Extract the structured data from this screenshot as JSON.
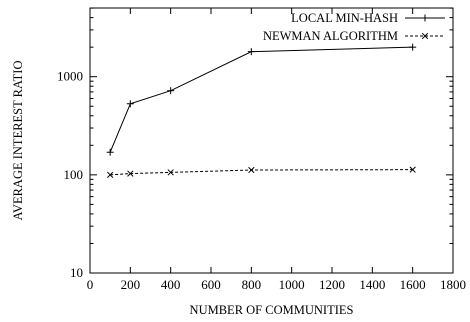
{
  "chart_data": {
    "type": "line",
    "xlabel": "NUMBER OF COMMUNITIES",
    "ylabel": "AVERAGE INTEREST RATIO",
    "xlim": [
      0,
      1800
    ],
    "ylim": [
      10,
      5000
    ],
    "yscale": "log",
    "x_ticks": [
      0,
      200,
      400,
      600,
      800,
      1000,
      1200,
      1400,
      1600,
      1800
    ],
    "y_ticks": [
      10,
      100,
      1000
    ],
    "x_tick_labels": [
      "0",
      "200",
      "400",
      "600",
      "800",
      "1000",
      "1200",
      "1400",
      "1600",
      "1800"
    ],
    "y_tick_labels": [
      "10",
      "100",
      "1000"
    ],
    "legend_position": "top-right",
    "grid": false,
    "series": [
      {
        "name": "LOCAL MIN-HASH",
        "marker": "plus",
        "line": "solid",
        "x": [
          100,
          200,
          400,
          800,
          1600
        ],
        "y": [
          170,
          530,
          720,
          1800,
          2000
        ]
      },
      {
        "name": "NEWMAN ALGORITHM",
        "marker": "cross",
        "line": "dashed",
        "x": [
          100,
          200,
          400,
          800,
          1600
        ],
        "y": [
          100,
          103,
          106,
          112,
          113
        ]
      }
    ]
  }
}
